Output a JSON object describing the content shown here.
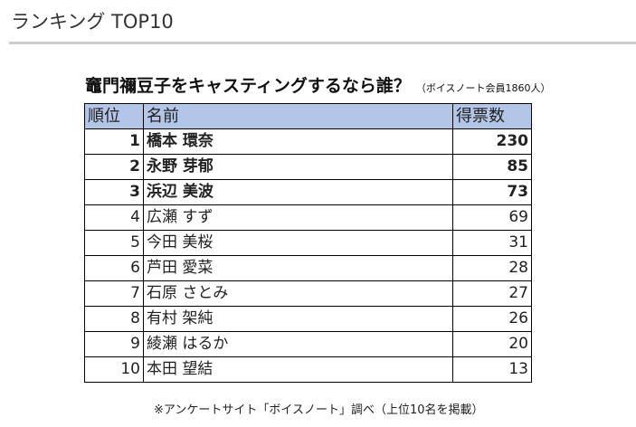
{
  "heading": "ランキング TOP10",
  "title": "竈門禰豆子をキャスティングするなら誰？",
  "subtitle": "（ボイスノート会員1860人）",
  "columns": [
    "順位",
    "名前",
    "得票数"
  ],
  "rows": [
    {
      "rank": "1",
      "name": "橋本 環奈",
      "votes": "230"
    },
    {
      "rank": "2",
      "name": "永野 芽郁",
      "votes": "85"
    },
    {
      "rank": "3",
      "name": "浜辺 美波",
      "votes": "73"
    },
    {
      "rank": "4",
      "name": "広瀬 すず",
      "votes": "69"
    },
    {
      "rank": "5",
      "name": "今田 美桜",
      "votes": "31"
    },
    {
      "rank": "6",
      "name": "芦田 愛菜",
      "votes": "28"
    },
    {
      "rank": "7",
      "name": "石原 さとみ",
      "votes": "27"
    },
    {
      "rank": "8",
      "name": "有村 架純",
      "votes": "26"
    },
    {
      "rank": "9",
      "name": "綾瀬 はるか",
      "votes": "20"
    },
    {
      "rank": "10",
      "name": "本田 望結",
      "votes": "13"
    }
  ],
  "footnote": "※アンケートサイト「ボイスノート」調べ（上位10名を掲載）"
}
